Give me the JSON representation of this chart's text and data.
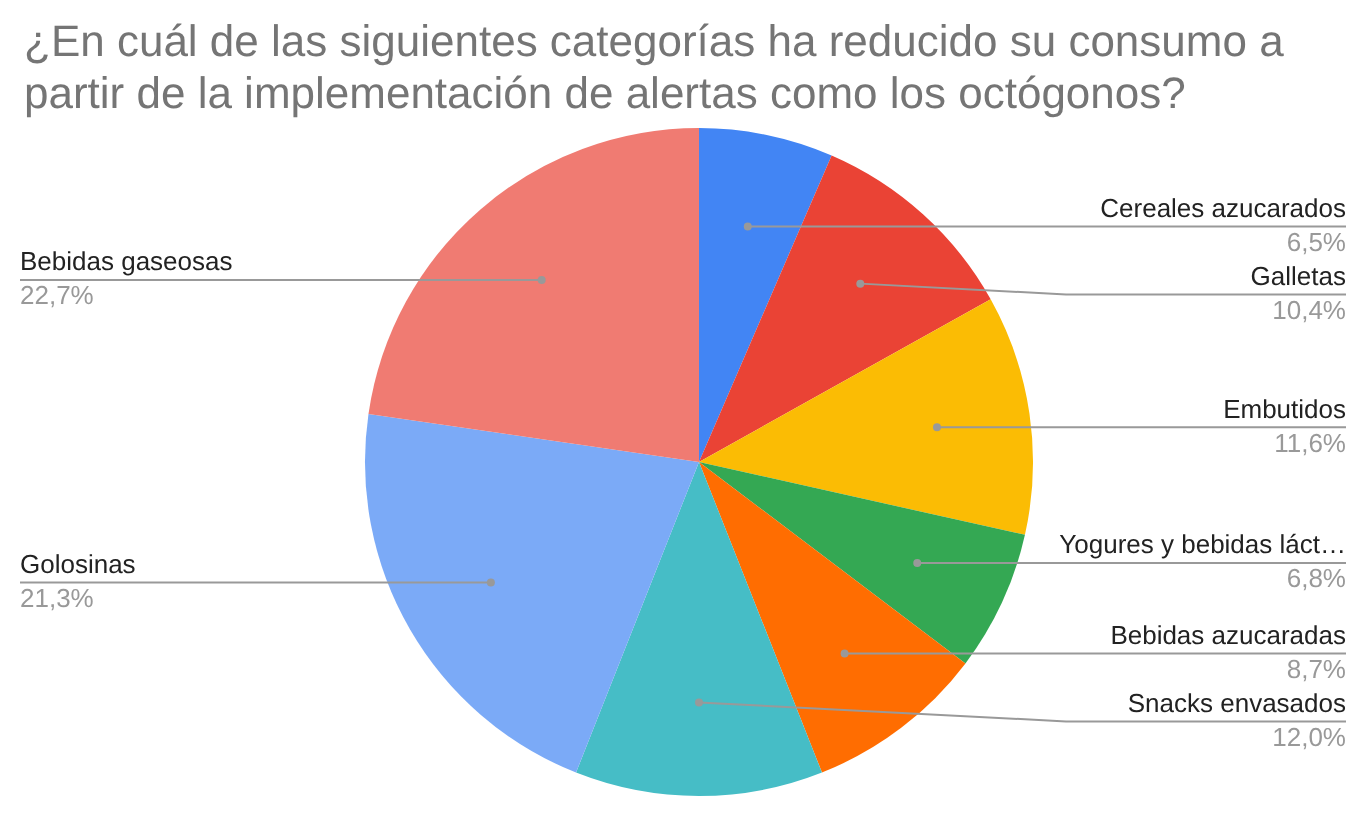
{
  "chart_data": {
    "type": "pie",
    "title": "¿En cuál de las siguientes categorías ha reducido su consumo a partir de la implementación de alertas como los octógonos?",
    "categories": [
      "Cereales azucarados",
      "Galletas",
      "Embutidos",
      "Yogures y bebidas láct…",
      "Bebidas azucaradas",
      "Snacks envasados",
      "Golosinas",
      "Bebidas gaseosas"
    ],
    "values": [
      6.5,
      10.4,
      11.6,
      6.8,
      8.7,
      12.0,
      21.3,
      22.7
    ],
    "value_labels": [
      "6,5%",
      "10,4%",
      "11,6%",
      "6,8%",
      "8,7%",
      "12,0%",
      "21,3%",
      "22,7%"
    ],
    "colors": [
      "#4285f4",
      "#ea4335",
      "#fbbc04",
      "#34a853",
      "#ff6d01",
      "#46bdc6",
      "#7baaf7",
      "#f07b72"
    ],
    "legend": false
  }
}
